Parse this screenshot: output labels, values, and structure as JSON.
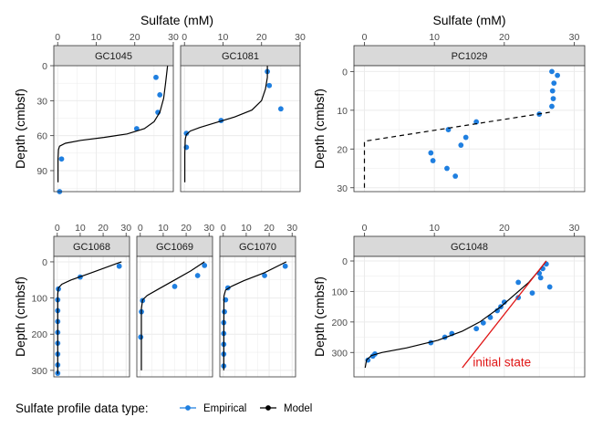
{
  "figure": {
    "legend_title": "Sulfate profile data type:",
    "legend_items": [
      {
        "label": "Empirical",
        "color": "#1f7fe0"
      },
      {
        "label": "Model",
        "color": "#000000"
      }
    ],
    "colors": {
      "empirical": "#1f7fe0",
      "model": "#000000",
      "initial_state": "#e01515",
      "strip_bg": "#d9d9d9",
      "grid": "#ebebeb"
    }
  },
  "chart_data": [
    {
      "type": "scatter",
      "panel_group": "top-left",
      "title": "Sulfate (mM)",
      "ylabel": "Depth (cmbsf)",
      "xlim": [
        -1,
        30
      ],
      "ylim": [
        0,
        108
      ],
      "xticks": [
        0,
        10,
        20,
        30
      ],
      "yticks": [
        0,
        30,
        60,
        90
      ],
      "grid": true,
      "facets": [
        {
          "label": "GC1045",
          "series": [
            {
              "name": "Empirical",
              "points": [
                [
                  1,
                  80
                ],
                [
                  25.5,
                  10
                ],
                [
                  26.5,
                  25
                ],
                [
                  26,
                  40
                ],
                [
                  20.5,
                  54
                ],
                [
                  0.5,
                  108
                ]
              ]
            },
            {
              "name": "Model",
              "curve": [
                [
                  28.5,
                  0
                ],
                [
                  28,
                  15
                ],
                [
                  27.5,
                  28
                ],
                [
                  26.5,
                  40
                ],
                [
                  25,
                  48
                ],
                [
                  22.5,
                  54
                ],
                [
                  18,
                  58.5
                ],
                [
                  12,
                  61.5
                ],
                [
                  6,
                  64
                ],
                [
                  2,
                  66.5
                ],
                [
                  0.5,
                  69
                ],
                [
                  0.2,
                  72
                ],
                [
                  0.1,
                  80
                ],
                [
                  0.1,
                  100
                ]
              ]
            }
          ]
        },
        {
          "label": "GC1081",
          "series": [
            {
              "name": "Empirical",
              "points": [
                [
                  0.5,
                  58
                ],
                [
                  0.5,
                  70
                ],
                [
                  9.5,
                  47
                ],
                [
                  21.5,
                  5
                ],
                [
                  22,
                  17
                ],
                [
                  25,
                  37
                ]
              ]
            },
            {
              "name": "Model",
              "curve": [
                [
                  21.5,
                  0
                ],
                [
                  21.5,
                  10
                ],
                [
                  21,
                  20
                ],
                [
                  20,
                  30
                ],
                [
                  17.5,
                  38
                ],
                [
                  13,
                  44
                ],
                [
                  8,
                  49
                ],
                [
                  4,
                  53
                ],
                [
                  1.5,
                  56
                ],
                [
                  0.5,
                  59
                ],
                [
                  0.2,
                  63
                ],
                [
                  0.1,
                  75
                ],
                [
                  0.1,
                  100
                ]
              ]
            }
          ]
        }
      ]
    },
    {
      "type": "scatter",
      "panel_group": "top-right",
      "title": "Sulfate (mM)",
      "ylabel": "Depth (cmbsf)",
      "xlim": [
        -1.5,
        31.5
      ],
      "ylim": [
        -1.5,
        31
      ],
      "xticks": [
        0,
        10,
        20,
        30
      ],
      "yticks": [
        0,
        10,
        20,
        30
      ],
      "grid": true,
      "facets": [
        {
          "label": "PC1029",
          "series": [
            {
              "name": "Empirical",
              "points": [
                [
                  26.8,
                  0
                ],
                [
                  27.6,
                  1
                ],
                [
                  27.1,
                  3
                ],
                [
                  26.9,
                  5
                ],
                [
                  27,
                  7
                ],
                [
                  26.8,
                  9
                ],
                [
                  25,
                  11
                ],
                [
                  16,
                  13
                ],
                [
                  14.5,
                  17
                ],
                [
                  12,
                  15
                ],
                [
                  13.8,
                  19
                ],
                [
                  9.5,
                  21
                ],
                [
                  9.8,
                  23
                ],
                [
                  11.8,
                  25
                ],
                [
                  13,
                  27
                ]
              ]
            },
            {
              "name": "Model",
              "dashed": true,
              "curve": [
                [
                  0,
                  30
                ],
                [
                  0,
                  18
                ],
                [
                  26.5,
                  10.5
                ]
              ]
            }
          ]
        }
      ]
    },
    {
      "type": "scatter",
      "panel_group": "bottom-left",
      "ylabel": "Depth (cmbsf)",
      "xlim": [
        -1.5,
        31.5
      ],
      "ylim": [
        -15,
        318
      ],
      "xticks": [
        0,
        10,
        20,
        30
      ],
      "yticks": [
        0,
        100,
        200,
        300
      ],
      "grid": true,
      "facets": [
        {
          "label": "GC1068",
          "series": [
            {
              "name": "Empirical",
              "points": [
                [
                  27,
                  12
                ],
                [
                  10,
                  42
                ],
                [
                  0.5,
                  75
                ],
                [
                  0.2,
                  105
                ],
                [
                  0.2,
                  135
                ],
                [
                  0.2,
                  165
                ],
                [
                  0.2,
                  195
                ],
                [
                  0.2,
                  225
                ],
                [
                  0.2,
                  255
                ],
                [
                  0.2,
                  285
                ],
                [
                  0.2,
                  308
                ]
              ]
            },
            {
              "name": "Model",
              "curve": [
                [
                  28,
                  0
                ],
                [
                  15,
                  30
                ],
                [
                  6,
                  50
                ],
                [
                  2,
                  62
                ],
                [
                  0.5,
                  72
                ],
                [
                  0.2,
                  90
                ],
                [
                  0.2,
                  310
                ]
              ]
            }
          ]
        },
        {
          "label": "GC1069",
          "series": [
            {
              "name": "Empirical",
              "points": [
                [
                  28,
                  10
                ],
                [
                  25,
                  38
                ],
                [
                  15,
                  68
                ],
                [
                  1,
                  107
                ],
                [
                  0.5,
                  138
                ],
                [
                  0.2,
                  208
                ]
              ]
            },
            {
              "name": "Model",
              "curve": [
                [
                  28,
                  0
                ],
                [
                  22,
                  25
                ],
                [
                  15,
                  50
                ],
                [
                  8,
                  75
                ],
                [
                  3,
                  93
                ],
                [
                  1,
                  105
                ],
                [
                  0.5,
                  130
                ],
                [
                  0.5,
                  300
                ]
              ]
            }
          ]
        },
        {
          "label": "GC1070",
          "series": [
            {
              "name": "Empirical",
              "points": [
                [
                  27,
                  12
                ],
                [
                  18,
                  38
                ],
                [
                  2,
                  72
                ],
                [
                  1,
                  105
                ],
                [
                  0.5,
                  138
                ],
                [
                  0.2,
                  168
                ],
                [
                  0.2,
                  198
                ],
                [
                  0.2,
                  228
                ],
                [
                  0.2,
                  255
                ],
                [
                  0.2,
                  288
                ]
              ]
            },
            {
              "name": "Model",
              "curve": [
                [
                  27.5,
                  0
                ],
                [
                  18,
                  30
                ],
                [
                  9,
                  52
                ],
                [
                  3.5,
                  68
                ],
                [
                  1,
                  78
                ],
                [
                  0.3,
                  95
                ],
                [
                  0.2,
                  300
                ]
              ]
            }
          ]
        }
      ]
    },
    {
      "type": "scatter",
      "panel_group": "bottom-right",
      "ylabel": "Depth (cmbsf)",
      "xlim": [
        -1.5,
        31.5
      ],
      "ylim": [
        -15,
        380
      ],
      "xticks": [
        0,
        10,
        20,
        30
      ],
      "yticks": [
        0,
        100,
        200,
        300
      ],
      "grid": true,
      "annotation": "initial state",
      "facets": [
        {
          "label": "GC1048",
          "series": [
            {
              "name": "Empirical",
              "points": [
                [
                  26,
                  10
                ],
                [
                  25.5,
                  25
                ],
                [
                  25,
                  40
                ],
                [
                  25.2,
                  55
                ],
                [
                  26.5,
                  85
                ],
                [
                  24,
                  105
                ],
                [
                  22,
                  70
                ],
                [
                  22,
                  120
                ],
                [
                  20,
                  135
                ],
                [
                  19.5,
                  150
                ],
                [
                  19,
                  163
                ],
                [
                  18,
                  185
                ],
                [
                  17,
                  203
                ],
                [
                  16,
                  222
                ],
                [
                  12.5,
                  238
                ],
                [
                  11.5,
                  250
                ],
                [
                  9.5,
                  268
                ],
                [
                  1.5,
                  305
                ],
                [
                  1.2,
                  312
                ],
                [
                  0.5,
                  325
                ]
              ]
            },
            {
              "name": "Model",
              "curve": [
                [
                  26,
                  0
                ],
                [
                  25,
                  30
                ],
                [
                  23.5,
                  70
                ],
                [
                  21.5,
                  110
                ],
                [
                  19.5,
                  150
                ],
                [
                  16.5,
                  200
                ],
                [
                  14,
                  230
                ],
                [
                  10.5,
                  260
                ],
                [
                  6,
                  285
                ],
                [
                  2.5,
                  300
                ],
                [
                  1,
                  310
                ],
                [
                  0.3,
                  325
                ],
                [
                  0.1,
                  350
                ]
              ]
            },
            {
              "name": "initial state",
              "curve": [
                [
                  26,
                  0
                ],
                [
                  14,
                  350
                ]
              ]
            }
          ]
        }
      ]
    }
  ]
}
